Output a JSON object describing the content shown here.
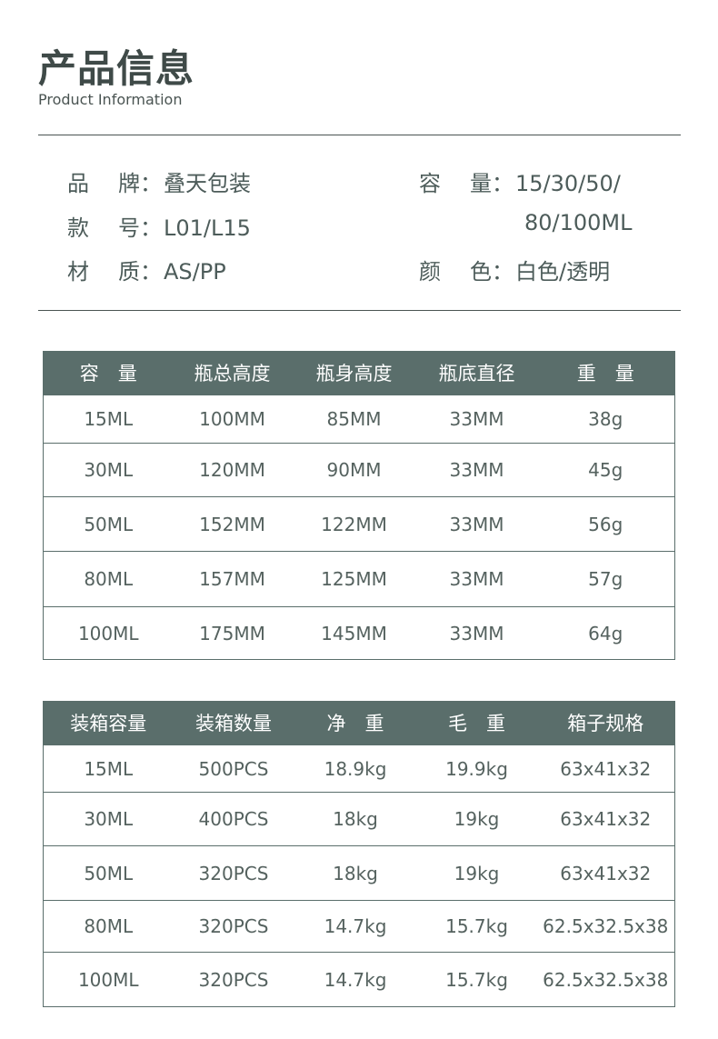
{
  "header": {
    "title": "产品信息",
    "subtitle": "Product Information"
  },
  "info": {
    "brand": {
      "k1": "品",
      "k2": "牌：",
      "value": "叠天包装"
    },
    "model": {
      "k1": "款",
      "k2": "号：",
      "value": "L01/L15"
    },
    "material": {
      "k1": "材",
      "k2": "质：",
      "value": "AS/PP"
    },
    "capacity": {
      "k1": "容",
      "k2": "量：",
      "value_line1": "15/30/50/",
      "value_line2": "80/100ML"
    },
    "color": {
      "k1": "颜",
      "k2": "色：",
      "value": "白色/透明"
    }
  },
  "spec_table": {
    "headers": [
      "容　量",
      "瓶总高度",
      "瓶身高度",
      "瓶底直径",
      "重　量"
    ],
    "rows": [
      [
        "15ML",
        "100MM",
        "85MM",
        "33MM",
        "38g"
      ],
      [
        "30ML",
        "120MM",
        "90MM",
        "33MM",
        "45g"
      ],
      [
        "50ML",
        "152MM",
        "122MM",
        "33MM",
        "56g"
      ],
      [
        "80ML",
        "157MM",
        "125MM",
        "33MM",
        "57g"
      ],
      [
        "100ML",
        "175MM",
        "145MM",
        "33MM",
        "64g"
      ]
    ]
  },
  "packing_table": {
    "headers": [
      "装箱容量",
      "装箱数量",
      "净　重",
      "毛　重",
      "箱子规格"
    ],
    "rows": [
      [
        "15ML",
        "500PCS",
        "18.9kg",
        "19.9kg",
        "63x41x32"
      ],
      [
        "30ML",
        "400PCS",
        "18kg",
        "19kg",
        "63x41x32"
      ],
      [
        "50ML",
        "320PCS",
        "18kg",
        "19kg",
        "63x41x32"
      ],
      [
        "80ML",
        "320PCS",
        "14.7kg",
        "15.7kg",
        "62.5x32.5x38"
      ],
      [
        "100ML",
        "320PCS",
        "14.7kg",
        "15.7kg",
        "62.5x32.5x38"
      ]
    ]
  },
  "colors": {
    "header_bg": "#5a6e6b",
    "text": "#4d5c5a"
  }
}
